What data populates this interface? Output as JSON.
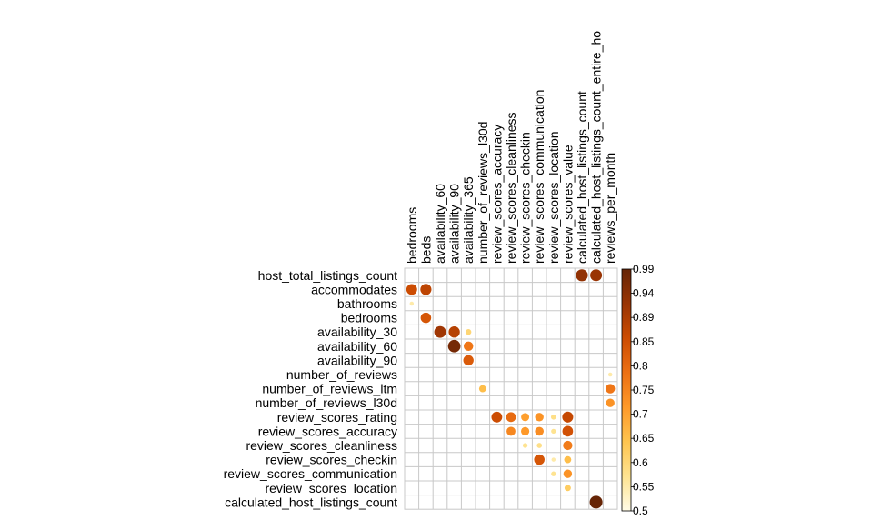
{
  "chart_data": {
    "type": "heatmap",
    "title": "",
    "row_labels": [
      "host_total_listings_count",
      "accommodates",
      "bathrooms",
      "bedrooms",
      "availability_30",
      "availability_60",
      "availability_90",
      "number_of_reviews",
      "number_of_reviews_ltm",
      "number_of_reviews_l30d",
      "review_scores_rating",
      "review_scores_accuracy",
      "review_scores_cleanliness",
      "review_scores_checkin",
      "review_scores_communication",
      "review_scores_location",
      "calculated_host_listings_count"
    ],
    "column_labels": [
      "bedrooms",
      "beds",
      "availability_60",
      "availability_90",
      "availability_365",
      "number_of_reviews_l30d",
      "review_scores_accuracy",
      "review_scores_cleanliness",
      "review_scores_checkin",
      "review_scores_communication",
      "review_scores_location",
      "review_scores_value",
      "calculated_host_listings_count",
      "calculated_host_listings_count_entire_ho",
      "reviews_per_month"
    ],
    "cells": [
      {
        "row": "host_total_listings_count",
        "col": "calculated_host_listings_count",
        "value": 0.93
      },
      {
        "row": "host_total_listings_count",
        "col": "calculated_host_listings_count_entire_ho",
        "value": 0.92
      },
      {
        "row": "accommodates",
        "col": "bedrooms",
        "value": 0.85
      },
      {
        "row": "accommodates",
        "col": "beds",
        "value": 0.87
      },
      {
        "row": "bathrooms",
        "col": "bedrooms",
        "value": 0.55
      },
      {
        "row": "bedrooms",
        "col": "beds",
        "value": 0.83
      },
      {
        "row": "availability_30",
        "col": "availability_60",
        "value": 0.91
      },
      {
        "row": "availability_30",
        "col": "availability_90",
        "value": 0.88
      },
      {
        "row": "availability_30",
        "col": "availability_365",
        "value": 0.6
      },
      {
        "row": "availability_60",
        "col": "availability_90",
        "value": 0.97
      },
      {
        "row": "availability_60",
        "col": "availability_365",
        "value": 0.77
      },
      {
        "row": "availability_90",
        "col": "availability_365",
        "value": 0.82
      },
      {
        "row": "number_of_reviews",
        "col": "reviews_per_month",
        "value": 0.55
      },
      {
        "row": "number_of_reviews_ltm",
        "col": "number_of_reviews_l30d",
        "value": 0.65
      },
      {
        "row": "number_of_reviews_ltm",
        "col": "reviews_per_month",
        "value": 0.77
      },
      {
        "row": "number_of_reviews_l30d",
        "col": "reviews_per_month",
        "value": 0.72
      },
      {
        "row": "review_scores_rating",
        "col": "review_scores_accuracy",
        "value": 0.85
      },
      {
        "row": "review_scores_rating",
        "col": "review_scores_cleanliness",
        "value": 0.79
      },
      {
        "row": "review_scores_rating",
        "col": "review_scores_checkin",
        "value": 0.7
      },
      {
        "row": "review_scores_rating",
        "col": "review_scores_communication",
        "value": 0.72
      },
      {
        "row": "review_scores_rating",
        "col": "review_scores_location",
        "value": 0.58
      },
      {
        "row": "review_scores_rating",
        "col": "review_scores_value",
        "value": 0.86
      },
      {
        "row": "review_scores_accuracy",
        "col": "review_scores_cleanliness",
        "value": 0.74
      },
      {
        "row": "review_scores_accuracy",
        "col": "review_scores_checkin",
        "value": 0.71
      },
      {
        "row": "review_scores_accuracy",
        "col": "review_scores_communication",
        "value": 0.73
      },
      {
        "row": "review_scores_accuracy",
        "col": "review_scores_location",
        "value": 0.57
      },
      {
        "row": "review_scores_accuracy",
        "col": "review_scores_value",
        "value": 0.84
      },
      {
        "row": "review_scores_cleanliness",
        "col": "review_scores_checkin",
        "value": 0.57
      },
      {
        "row": "review_scores_cleanliness",
        "col": "review_scores_communication",
        "value": 0.58
      },
      {
        "row": "review_scores_cleanliness",
        "col": "review_scores_value",
        "value": 0.76
      },
      {
        "row": "review_scores_checkin",
        "col": "review_scores_communication",
        "value": 0.83
      },
      {
        "row": "review_scores_checkin",
        "col": "review_scores_location",
        "value": 0.55
      },
      {
        "row": "review_scores_checkin",
        "col": "review_scores_value",
        "value": 0.65
      },
      {
        "row": "review_scores_communication",
        "col": "review_scores_location",
        "value": 0.57
      },
      {
        "row": "review_scores_communication",
        "col": "review_scores_value",
        "value": 0.72
      },
      {
        "row": "review_scores_location",
        "col": "review_scores_value",
        "value": 0.62
      },
      {
        "row": "calculated_host_listings_count",
        "col": "calculated_host_listings_count_entire_ho",
        "value": 0.99
      }
    ],
    "colorbar": {
      "min": 0.5,
      "max": 0.99,
      "ticks": [
        "0.99",
        "0.94",
        "0.89",
        "0.85",
        "0.8",
        "0.75",
        "0.7",
        "0.65",
        "0.6",
        "0.55",
        "0.5"
      ],
      "colors": [
        "#fffbe6",
        "#fee391",
        "#fec44f",
        "#fe9929",
        "#ec7014",
        "#cc4c02",
        "#993404",
        "#662506"
      ]
    },
    "grid": true,
    "legend_position": "right"
  }
}
